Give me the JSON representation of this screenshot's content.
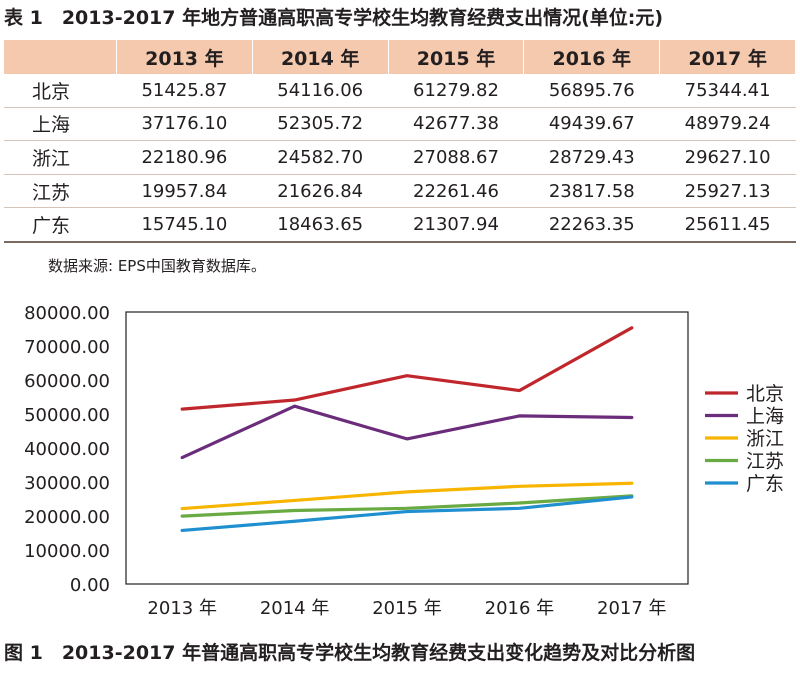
{
  "table": {
    "caption": "表 1　2013-2017 年地方普通高职高专学校生均教育经费支出情况(单位:元)",
    "header": [
      "",
      "2013 年",
      "2014 年",
      "2015 年",
      "2016 年",
      "2017 年"
    ],
    "rows": [
      [
        "北京",
        "51425.87",
        "54116.06",
        "61279.82",
        "56895.76",
        "75344.41"
      ],
      [
        "上海",
        "37176.10",
        "52305.72",
        "42677.38",
        "49439.67",
        "48979.24"
      ],
      [
        "浙江",
        "22180.96",
        "24582.70",
        "27088.67",
        "28729.43",
        "29627.10"
      ],
      [
        "江苏",
        "19957.84",
        "21626.84",
        "22261.46",
        "23817.58",
        "25927.13"
      ],
      [
        "广东",
        "15745.10",
        "18463.65",
        "21307.94",
        "22263.35",
        "25611.45"
      ]
    ]
  },
  "source_note": "数据来源: EPS中国教育数据库。",
  "figure_caption": "图 1　2013-2017 年普通高职高专学校生均教育经费支出变化趋势及对比分析图",
  "chart_data": {
    "type": "line",
    "title": "",
    "xlabel": "",
    "ylabel": "",
    "categories": [
      "2013 年",
      "2014 年",
      "2015 年",
      "2016 年",
      "2017 年"
    ],
    "ylim": [
      0,
      80000
    ],
    "yticks": [
      0,
      10000,
      20000,
      30000,
      40000,
      50000,
      60000,
      70000,
      80000
    ],
    "ytick_labels": [
      "0.00",
      "10000.00",
      "20000.00",
      "30000.00",
      "40000.00",
      "50000.00",
      "60000.00",
      "70000.00",
      "80000.00"
    ],
    "grid": false,
    "legend_position": "right",
    "series": [
      {
        "name": "北京",
        "color": "#c0272d",
        "values": [
          51425.87,
          54116.06,
          61279.82,
          56895.76,
          75344.41
        ]
      },
      {
        "name": "上海",
        "color": "#6b2d7b",
        "values": [
          37176.1,
          52305.72,
          42677.38,
          49439.67,
          48979.24
        ]
      },
      {
        "name": "浙江",
        "color": "#f7b500",
        "values": [
          22180.96,
          24582.7,
          27088.67,
          28729.43,
          29627.1
        ]
      },
      {
        "name": "江苏",
        "color": "#6aaa42",
        "values": [
          19957.84,
          21626.84,
          22261.46,
          23817.58,
          25927.13
        ]
      },
      {
        "name": "广东",
        "color": "#1f8fd0",
        "values": [
          15745.1,
          18463.65,
          21307.94,
          22263.35,
          25611.45
        ]
      }
    ]
  }
}
